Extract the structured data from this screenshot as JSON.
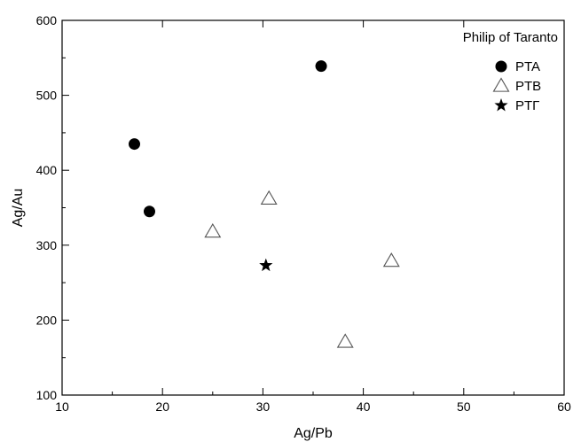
{
  "chart_data": {
    "type": "scatter",
    "title": "Philip of Taranto",
    "xlabel": "Ag/Pb",
    "ylabel": "Ag/Au",
    "xlim": [
      10,
      60
    ],
    "ylim": [
      100,
      600
    ],
    "x_ticks": [
      10,
      20,
      30,
      40,
      50,
      60
    ],
    "y_ticks": [
      100,
      200,
      300,
      400,
      500,
      600
    ],
    "grid": false,
    "legend_position": "top-right",
    "series": [
      {
        "name": "PTA",
        "marker": "filled-circle",
        "points": [
          {
            "x": 17.2,
            "y": 435
          },
          {
            "x": 18.7,
            "y": 345
          },
          {
            "x": 35.8,
            "y": 539
          }
        ]
      },
      {
        "name": "PTB",
        "marker": "open-triangle",
        "points": [
          {
            "x": 25.0,
            "y": 318
          },
          {
            "x": 30.6,
            "y": 362
          },
          {
            "x": 38.2,
            "y": 171
          },
          {
            "x": 42.8,
            "y": 279
          }
        ]
      },
      {
        "name": "PTΓ",
        "marker": "filled-star",
        "points": [
          {
            "x": 30.3,
            "y": 273
          }
        ]
      }
    ]
  }
}
